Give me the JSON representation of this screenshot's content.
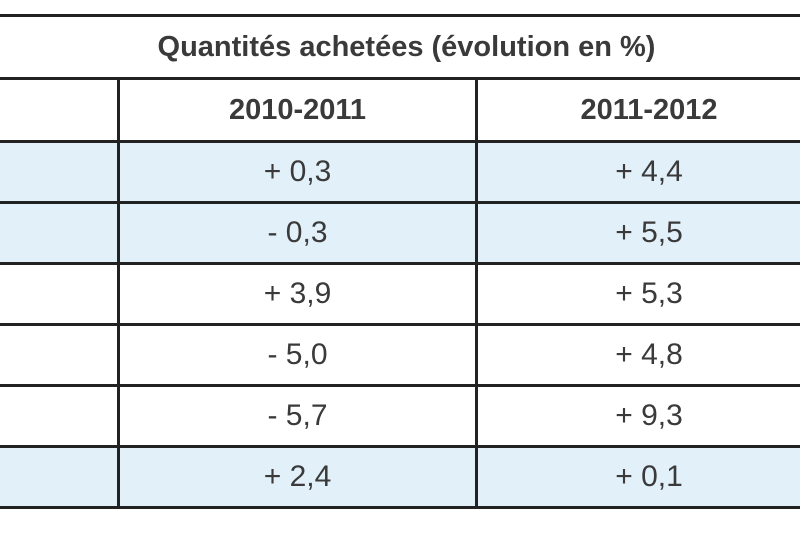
{
  "table": {
    "title": "Quantités achetées (évolution en %)",
    "columns": [
      "",
      "2010-2011",
      "2011-2012"
    ],
    "rows": [
      {
        "label": "",
        "values": [
          "+ 0,3",
          "+ 4,4"
        ],
        "shaded": true
      },
      {
        "label": "",
        "values": [
          "- 0,3",
          "+ 5,5"
        ],
        "shaded": true
      },
      {
        "label": "",
        "values": [
          "+ 3,9",
          "+ 5,3"
        ],
        "shaded": false
      },
      {
        "label": "",
        "values": [
          "- 5,0",
          "+ 4,8"
        ],
        "shaded": false
      },
      {
        "label": "",
        "values": [
          "- 5,7",
          "+ 9,3"
        ],
        "shaded": false
      },
      {
        "label": "",
        "values": [
          "+ 2,4",
          "+ 0,1"
        ],
        "shaded": true
      }
    ]
  },
  "colors": {
    "row_shade": "#e2f0fa",
    "border": "#222222",
    "text": "#3a3a3a"
  }
}
